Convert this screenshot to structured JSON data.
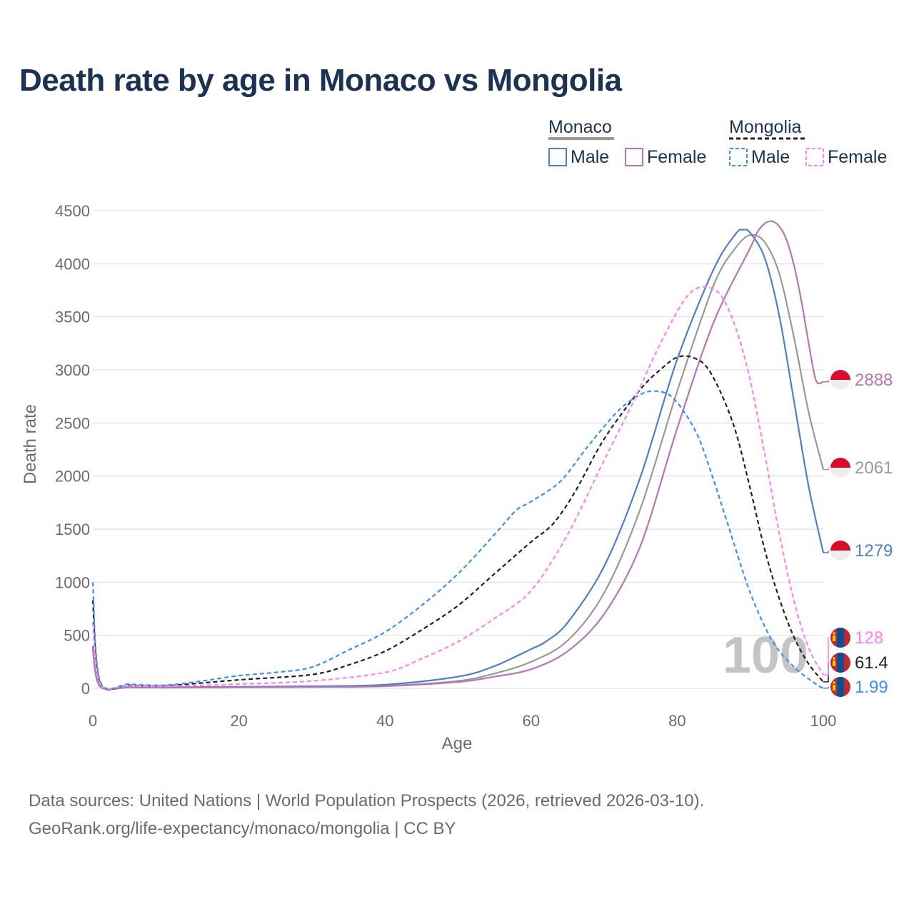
{
  "title": "Death rate by age in Monaco vs Mongolia",
  "footer": {
    "line1": "Data sources: United Nations | World Population Prospects (2026, retrieved 2026-03-10).",
    "line2": "GeoRank.org/life-expectancy/monaco/mongolia | CC BY"
  },
  "legend": {
    "group1": "Monaco",
    "group2": "Mongolia",
    "male": "Male",
    "female": "Female"
  },
  "watermark": "100",
  "colors": {
    "monaco_male": "#4f7fc4",
    "monaco_female": "#b576b5",
    "monaco_total": "#999999",
    "mongolia_male": "#3d8ff0",
    "mongolia_female": "#ff80f0",
    "mongolia_total": "#222222"
  },
  "chart_data": {
    "type": "line",
    "xlabel": "Age",
    "ylabel": "Death rate",
    "xlim": [
      0,
      100
    ],
    "ylim": [
      0,
      4500
    ],
    "xticks": [
      0,
      20,
      40,
      60,
      80,
      100
    ],
    "yticks": [
      0,
      500,
      1000,
      1500,
      2000,
      2500,
      3000,
      3500,
      4000,
      4500
    ],
    "grid": true,
    "series": [
      {
        "name": "Monaco Total",
        "country": "Monaco",
        "sex": "Total",
        "style": "solid",
        "color_key": "monaco_total",
        "end_label": "2061",
        "x": [
          0,
          1,
          5,
          10,
          20,
          30,
          40,
          50,
          55,
          60,
          65,
          70,
          75,
          80,
          85,
          88,
          90,
          92,
          94,
          96,
          98,
          100
        ],
        "y": [
          380,
          20,
          10,
          8,
          12,
          15,
          25,
          70,
          140,
          250,
          450,
          900,
          1700,
          2800,
          3800,
          4150,
          4270,
          4200,
          3900,
          3300,
          2600,
          2061
        ]
      },
      {
        "name": "Monaco Male",
        "country": "Monaco",
        "sex": "Male",
        "style": "solid",
        "color_key": "monaco_male",
        "end_label": "1279",
        "x": [
          0,
          1,
          5,
          10,
          20,
          30,
          40,
          50,
          55,
          60,
          62,
          65,
          70,
          75,
          80,
          85,
          88,
          89,
          90,
          92,
          94,
          96,
          98,
          100
        ],
        "y": [
          400,
          25,
          12,
          10,
          15,
          20,
          35,
          110,
          210,
          370,
          440,
          620,
          1150,
          2000,
          3100,
          3950,
          4280,
          4320,
          4290,
          4050,
          3500,
          2700,
          1900,
          1279
        ]
      },
      {
        "name": "Monaco Female",
        "country": "Monaco",
        "sex": "Female",
        "style": "solid",
        "color_key": "monaco_female",
        "end_label": "2888",
        "x": [
          0,
          1,
          5,
          10,
          20,
          30,
          40,
          50,
          55,
          60,
          65,
          70,
          75,
          80,
          85,
          90,
          91,
          92,
          93,
          94,
          95,
          96,
          97,
          98,
          99,
          100
        ],
        "y": [
          360,
          18,
          9,
          7,
          10,
          13,
          20,
          60,
          110,
          180,
          350,
          700,
          1350,
          2450,
          3450,
          4150,
          4300,
          4380,
          4400,
          4350,
          4220,
          3980,
          3650,
          3250,
          2900,
          2888
        ]
      },
      {
        "name": "Mongolia Total",
        "country": "Mongolia",
        "sex": "Total",
        "style": "dashed",
        "color_key": "mongolia_total",
        "end_label": "61.4",
        "x": [
          0,
          1,
          5,
          10,
          20,
          30,
          35,
          40,
          45,
          50,
          55,
          60,
          63,
          66,
          70,
          75,
          78,
          80,
          82,
          84,
          86,
          88,
          90,
          92,
          94,
          96,
          98,
          100
        ],
        "y": [
          830,
          50,
          30,
          25,
          80,
          130,
          220,
          350,
          550,
          780,
          1080,
          1380,
          1550,
          1850,
          2350,
          2820,
          3020,
          3120,
          3120,
          3030,
          2780,
          2420,
          1880,
          1300,
          840,
          480,
          230,
          61.4
        ]
      },
      {
        "name": "Mongolia Male",
        "country": "Mongolia",
        "sex": "Male",
        "style": "dashed",
        "color_key": "mongolia_male",
        "end_label": "1.99",
        "x": [
          0,
          1,
          5,
          10,
          15,
          20,
          25,
          30,
          35,
          40,
          45,
          50,
          55,
          58,
          60,
          64,
          68,
          72,
          75,
          77,
          79,
          81,
          83,
          85,
          87,
          90,
          93,
          96,
          99,
          100
        ],
        "y": [
          1000,
          70,
          40,
          30,
          70,
          120,
          150,
          200,
          360,
          530,
          780,
          1080,
          1450,
          1680,
          1760,
          1950,
          2300,
          2620,
          2770,
          2800,
          2760,
          2600,
          2350,
          1960,
          1530,
          900,
          450,
          200,
          40,
          1.99
        ]
      },
      {
        "name": "Mongolia Female",
        "country": "Mongolia",
        "sex": "Female",
        "style": "dashed",
        "color_key": "mongolia_female",
        "end_label": "128",
        "x": [
          0,
          1,
          5,
          10,
          20,
          30,
          40,
          45,
          50,
          55,
          60,
          65,
          70,
          74,
          77,
          80,
          82,
          84,
          86,
          88,
          90,
          92,
          94,
          96,
          98,
          100
        ],
        "y": [
          620,
          40,
          25,
          20,
          40,
          70,
          150,
          280,
          440,
          660,
          920,
          1450,
          2150,
          2700,
          3150,
          3550,
          3740,
          3780,
          3700,
          3400,
          2900,
          2200,
          1450,
          820,
          380,
          128
        ]
      }
    ]
  }
}
